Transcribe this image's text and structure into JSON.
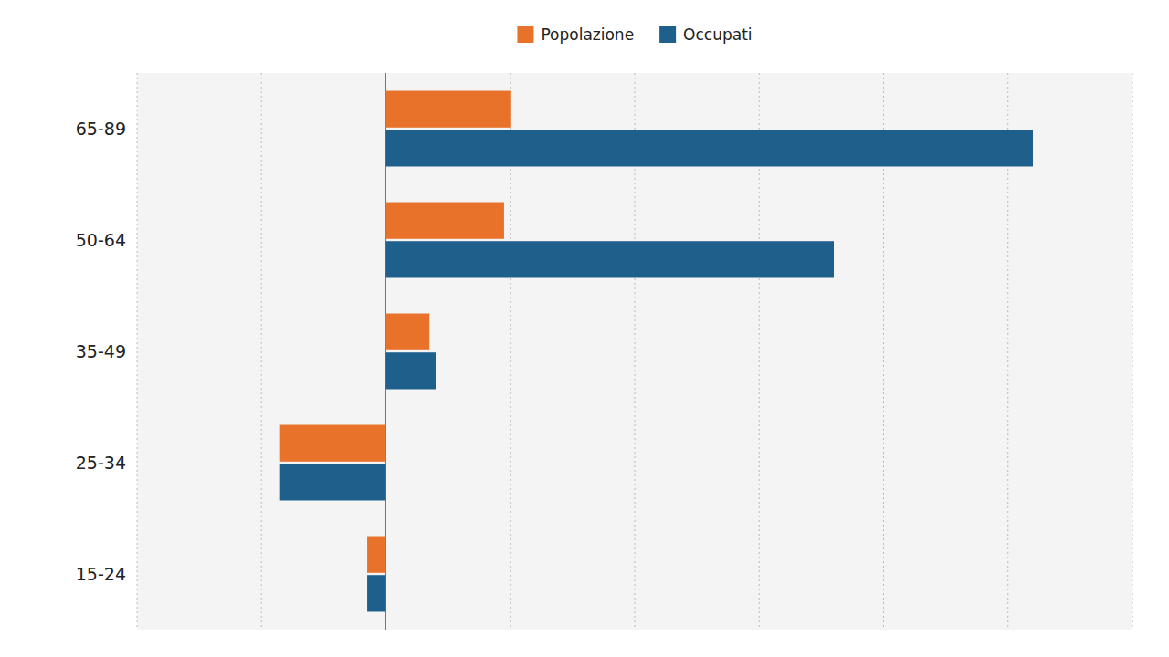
{
  "chart_data": {
    "type": "bar",
    "orientation": "horizontal",
    "categories": [
      "65-89",
      "50-64",
      "35-49",
      "25-34",
      "15-24"
    ],
    "series": [
      {
        "name": "Popolazione",
        "color": "#E8722A",
        "values": [
          10.0,
          9.5,
          3.5,
          -8.5,
          -1.5
        ]
      },
      {
        "name": "Occupati",
        "color": "#1F5F8B",
        "values": [
          52.0,
          36.0,
          4.0,
          -8.5,
          -1.5
        ]
      }
    ],
    "xlim": [
      -20,
      60
    ],
    "xticks": [
      -20,
      -10,
      0,
      10,
      20,
      30,
      40,
      50,
      60
    ],
    "grid": true,
    "legend": "top",
    "tick_labels": "y"
  }
}
